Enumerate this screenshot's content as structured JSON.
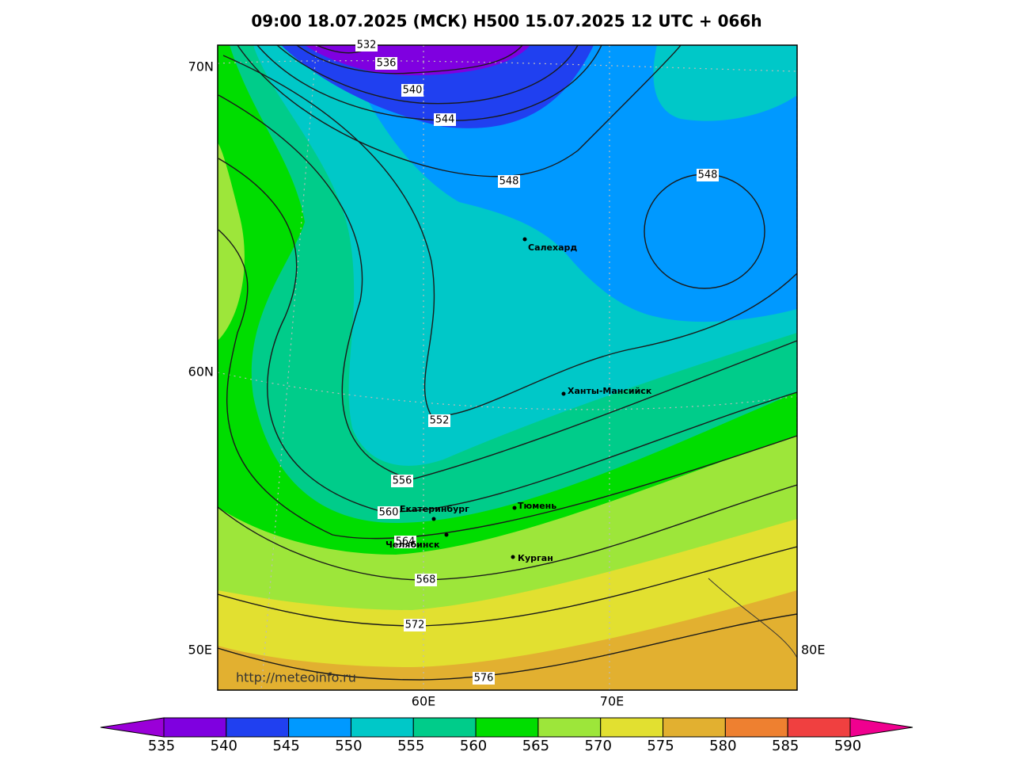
{
  "title": "09:00 18.07.2025 (МСК) H500  15.07.2025 12 UTC + 066h",
  "lat_labels": [
    "70N",
    "60N"
  ],
  "lon_labels": [
    "50E",
    "60E",
    "70E",
    "80E"
  ],
  "contour_labels": [
    "532",
    "536",
    "540",
    "544",
    "548",
    "548",
    "552",
    "556",
    "560",
    "564",
    "568",
    "572",
    "576"
  ],
  "cities": [
    "Салехард",
    "Ханты-Мансийск",
    "Екатеринбург",
    "Тюмень",
    "Челябинск",
    "Курган"
  ],
  "source": "http://meteoinfo.ru",
  "colorbar": {
    "levels": [
      535,
      540,
      545,
      550,
      555,
      560,
      565,
      570,
      575,
      580,
      585,
      590
    ],
    "colors": [
      "#9a00d8",
      "#7f00e0",
      "#2040f0",
      "#0099ff",
      "#00c8c8",
      "#00cc8a",
      "#00dd00",
      "#9de63a",
      "#e2e030",
      "#e2b030",
      "#ee8030",
      "#f04040",
      "#f0008f"
    ]
  }
}
